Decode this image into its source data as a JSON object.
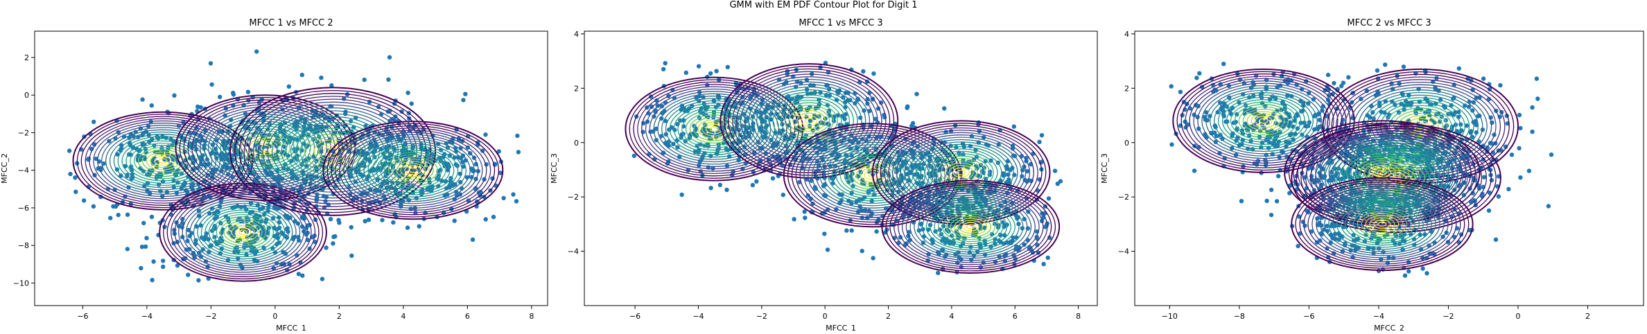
{
  "figure": {
    "suptitle": "GMM with EM PDF Contour Plot for Digit 1"
  },
  "colors": {
    "scatter": "#1f77b4",
    "contour_levels": [
      "#440154",
      "#482878",
      "#3e4989",
      "#31688e",
      "#26828e",
      "#1f9e89",
      "#35b779",
      "#6ece58",
      "#b5de2b",
      "#fde725"
    ]
  },
  "chart_data": [
    {
      "type": "scatter",
      "title": "MFCC 1 vs MFCC 2",
      "xlabel": "MFCC_1",
      "ylabel": "MFCC_2",
      "xlim": [
        -7.5,
        8.5
      ],
      "ylim": [
        -11.2,
        3.4
      ],
      "xticks": [
        -6,
        -4,
        -2,
        0,
        2,
        4,
        6,
        8
      ],
      "yticks": [
        2,
        0,
        -2,
        -4,
        -6,
        -8,
        -10
      ],
      "series": [
        {
          "type": "scatter",
          "cloud_center": [
            1.5,
            -3.0
          ],
          "cloud_extent_x": [
            -6.5,
            7.8
          ],
          "cloud_extent_y": [
            -10.0,
            2.5
          ]
        },
        {
          "type": "contour",
          "components": [
            {
              "mean": [
                -3.5,
                -3.5
              ],
              "rx": 2.8,
              "ry": 2.6
            },
            {
              "mean": [
                -1.0,
                -7.3
              ],
              "rx": 2.6,
              "ry": 2.6
            },
            {
              "mean": [
                -0.3,
                -2.8
              ],
              "rx": 2.8,
              "ry": 2.8
            },
            {
              "mean": [
                1.8,
                -3.0
              ],
              "rx": 3.2,
              "ry": 3.4
            },
            {
              "mean": [
                4.3,
                -4.0
              ],
              "rx": 2.8,
              "ry": 2.6
            }
          ]
        }
      ]
    },
    {
      "type": "scatter",
      "title": "MFCC 1 vs MFCC 3",
      "xlabel": "MFCC_1",
      "ylabel": "MFCC_3",
      "xlim": [
        -7.6,
        8.6
      ],
      "ylim": [
        -6.0,
        4.1
      ],
      "xticks": [
        -6,
        -4,
        -2,
        0,
        2,
        4,
        6,
        8
      ],
      "yticks": [
        4,
        2,
        0,
        -2,
        -4
      ],
      "series": [
        {
          "type": "scatter",
          "cloud_center": [
            1.5,
            -0.5
          ],
          "cloud_extent_x": [
            -6.3,
            7.6
          ],
          "cloud_extent_y": [
            -4.8,
            3.0
          ]
        },
        {
          "type": "contour",
          "components": [
            {
              "mean": [
                -3.5,
                0.5
              ],
              "rx": 2.8,
              "ry": 1.9
            },
            {
              "mean": [
                -0.5,
                0.8
              ],
              "rx": 2.8,
              "ry": 2.1
            },
            {
              "mean": [
                1.5,
                -1.2
              ],
              "rx": 2.8,
              "ry": 1.9
            },
            {
              "mean": [
                4.3,
                -1.1
              ],
              "rx": 2.8,
              "ry": 1.9
            },
            {
              "mean": [
                4.6,
                -3.1
              ],
              "rx": 2.8,
              "ry": 1.7
            }
          ]
        }
      ]
    },
    {
      "type": "scatter",
      "title": "MFCC 2 vs MFCC 3",
      "xlabel": "MFCC_2",
      "ylabel": "MFCC_3",
      "xlim": [
        -11.0,
        3.6
      ],
      "ylim": [
        -6.0,
        4.1
      ],
      "xticks": [
        -10,
        -8,
        -6,
        -4,
        -2,
        0,
        2
      ],
      "yticks": [
        4,
        2,
        0,
        -2,
        -4
      ],
      "series": [
        {
          "type": "scatter",
          "cloud_center": [
            -3.0,
            -0.8
          ],
          "cloud_extent_x": [
            -10.0,
            2.5
          ],
          "cloud_extent_y": [
            -4.9,
            3.0
          ]
        },
        {
          "type": "contour",
          "components": [
            {
              "mean": [
                -7.3,
                0.8
              ],
              "rx": 2.6,
              "ry": 1.9
            },
            {
              "mean": [
                -2.8,
                0.6
              ],
              "rx": 2.8,
              "ry": 2.1
            },
            {
              "mean": [
                -3.9,
                -1.1
              ],
              "rx": 2.8,
              "ry": 1.9
            },
            {
              "mean": [
                -3.5,
                -1.3
              ],
              "rx": 3.0,
              "ry": 2.0
            },
            {
              "mean": [
                -3.9,
                -3.0
              ],
              "rx": 2.6,
              "ry": 1.7
            }
          ]
        }
      ]
    }
  ]
}
